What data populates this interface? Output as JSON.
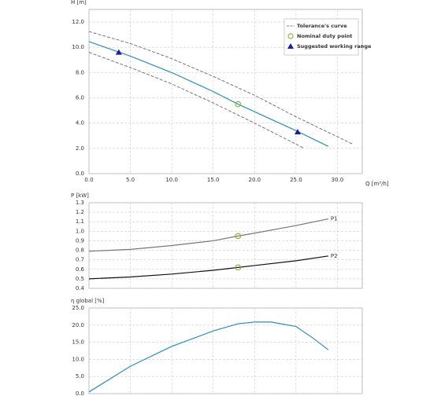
{
  "chart_data": [
    {
      "type": "line",
      "y_label": "H [m]",
      "x_label": "Q [m³/h]",
      "xlim": [
        0,
        33
      ],
      "ylim": [
        0,
        13
      ],
      "xticks": [
        {
          "value": 0,
          "label": "0.0"
        },
        {
          "value": 5,
          "label": "5.0"
        },
        {
          "value": 10,
          "label": "10.0"
        },
        {
          "value": 15,
          "label": "15.0"
        },
        {
          "value": 20,
          "label": "20.0"
        },
        {
          "value": 25,
          "label": "25.0"
        },
        {
          "value": 30,
          "label": "30.0"
        }
      ],
      "yticks": [
        {
          "value": 0,
          "label": "0.0"
        },
        {
          "value": 2,
          "label": "2.0"
        },
        {
          "value": 4,
          "label": "4.0"
        },
        {
          "value": 6,
          "label": "6.0"
        },
        {
          "value": 8,
          "label": "8.0"
        },
        {
          "value": 10,
          "label": "10.0"
        },
        {
          "value": 12,
          "label": "12.0"
        }
      ],
      "grid": true,
      "legend": "upper right",
      "series": [
        {
          "color": "#2b8cc4",
          "x": [
            0,
            5,
            10,
            15,
            18,
            20,
            25,
            28.9
          ],
          "values": [
            10.45,
            9.3,
            8.0,
            6.5,
            5.5,
            4.9,
            3.4,
            2.16
          ]
        },
        {
          "name": "Tolerance's curve",
          "color": "#555555",
          "dash": true,
          "x": [
            0,
            5,
            10,
            15,
            20,
            25,
            31.8
          ],
          "values": [
            11.25,
            10.3,
            9.1,
            7.7,
            6.2,
            4.5,
            2.35
          ]
        },
        {
          "color": "#555555",
          "dash": true,
          "x": [
            0,
            5,
            10,
            15,
            20,
            26
          ],
          "values": [
            9.6,
            8.4,
            7.1,
            5.6,
            4.0,
            2.0
          ]
        },
        {
          "name": "Nominal duty point",
          "color": "#8db33a",
          "marker": "circle",
          "x": [
            18
          ],
          "values": [
            5.5
          ]
        },
        {
          "name": "Suggested working range",
          "color": "#1c1ca8",
          "marker": "triangle",
          "x": [
            3.6,
            25.2
          ],
          "values": [
            9.6,
            3.3
          ]
        }
      ]
    },
    {
      "type": "line",
      "y_label": "P [kW]",
      "xlim": [
        0,
        33
      ],
      "ylim": [
        0.4,
        1.3
      ],
      "xticks": [
        0,
        5,
        10,
        15,
        20,
        25,
        30
      ],
      "xtick_labels": false,
      "yticks": [
        0.4,
        0.5,
        0.6,
        0.7,
        0.8,
        0.9,
        {
          "value": 1,
          "label": "1.0"
        },
        1.1,
        1.2,
        1.3
      ],
      "grid": true,
      "series_labels": "end",
      "series": [
        {
          "name": "P1",
          "color": "#777777",
          "x": [
            0,
            5,
            10,
            15,
            18,
            20,
            25,
            28.9
          ],
          "values": [
            0.79,
            0.81,
            0.85,
            0.9,
            0.95,
            0.98,
            1.06,
            1.13
          ]
        },
        {
          "name": "P2",
          "color": "#111111",
          "x": [
            0,
            5,
            10,
            15,
            18,
            20,
            25,
            28.9
          ],
          "values": [
            0.5,
            0.52,
            0.55,
            0.59,
            0.62,
            0.64,
            0.69,
            0.74
          ]
        },
        {
          "color": "#8db33a",
          "marker": "circle",
          "x": [
            18,
            18
          ],
          "values": [
            0.95,
            0.62
          ]
        }
      ]
    },
    {
      "type": "line",
      "y_label": "η global [%]",
      "xlim": [
        0,
        33
      ],
      "ylim": [
        0,
        25
      ],
      "xticks": [
        0,
        5,
        10,
        15,
        20,
        25,
        30
      ],
      "xtick_labels": false,
      "yticks": [
        {
          "value": 0,
          "label": "0.0"
        },
        {
          "value": 5,
          "label": "5.0"
        },
        {
          "value": 10,
          "label": "10.0"
        },
        {
          "value": 15,
          "label": "15.0"
        },
        {
          "value": 20,
          "label": "20.0"
        },
        {
          "value": 25,
          "label": "25.0"
        }
      ],
      "grid": true,
      "series": [
        {
          "color": "#2b8cc4",
          "x": [
            0,
            5,
            10,
            15,
            18,
            20,
            22,
            25,
            27,
            28.9
          ],
          "values": [
            0.5,
            8,
            13.8,
            18.3,
            20.4,
            20.9,
            20.9,
            19.6,
            16.3,
            12.8
          ]
        }
      ]
    }
  ]
}
